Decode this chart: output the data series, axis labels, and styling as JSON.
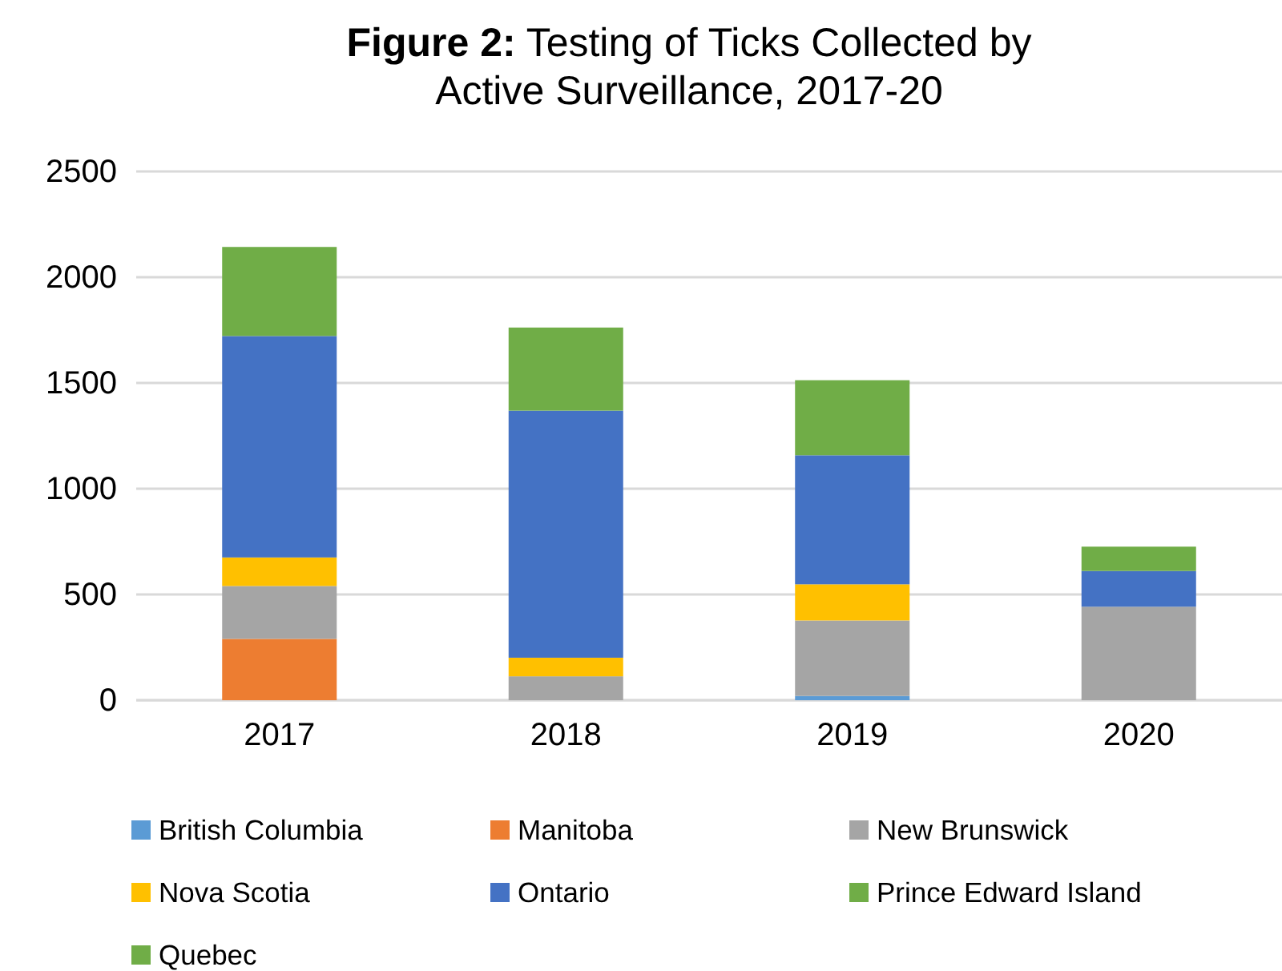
{
  "chart_data": {
    "type": "bar",
    "stacked": true,
    "title": "Figure 2: Testing of Ticks Collected by Active Surveillance, 2017-20",
    "categories": [
      "2017",
      "2018",
      "2019",
      "2020"
    ],
    "series": [
      {
        "name": "British Columbia",
        "color": "#5b9bd5",
        "values": [
          0,
          0,
          20,
          0
        ]
      },
      {
        "name": "Manitoba",
        "color": "#ed7d31",
        "values": [
          290,
          0,
          0,
          0
        ]
      },
      {
        "name": "New Brunswick",
        "color": "#a5a5a5",
        "values": [
          250,
          113,
          357,
          442
        ]
      },
      {
        "name": "Nova Scotia",
        "color": "#ffc000",
        "values": [
          135,
          88,
          171,
          0
        ]
      },
      {
        "name": "Ontario",
        "color": "#4472c4",
        "values": [
          1047,
          1168,
          610,
          169
        ]
      },
      {
        "name": "Prince Edward Island",
        "color": "#70ad47",
        "values": [
          0,
          0,
          0,
          0
        ]
      },
      {
        "name": "Quebec",
        "color": "#70ad47",
        "values": [
          421,
          393,
          355,
          115
        ]
      }
    ],
    "ylim": [
      0,
      2500
    ],
    "yticks": [
      0,
      500,
      1000,
      1500,
      2000,
      2500
    ],
    "grid": "y",
    "legend": "bottom"
  }
}
